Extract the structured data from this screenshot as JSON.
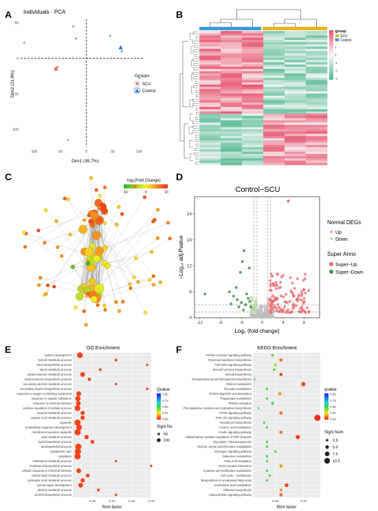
{
  "panels": {
    "a": "A",
    "b": "B",
    "c": "C",
    "d": "D",
    "e": "E",
    "f": "F"
  },
  "colors": {
    "scu": "#e57373",
    "control": "#1f78d1",
    "heat_high": "#e8516a",
    "heat_low": "#4fb88f",
    "heat_mid": "#f7f7f7",
    "group_scu": "#e6b422",
    "group_control": "#3a9ad9"
  },
  "chart_data": [
    {
      "id": "pca",
      "type": "scatter",
      "title": "Individuals - PCA",
      "xlabel": "Dim1 (35.7%)",
      "ylabel": "Dim2 (21.8%)",
      "xlim": [
        -125,
        110
      ],
      "ylim": [
        -125,
        55
      ],
      "xticks": [
        "-100",
        "-50",
        "0",
        "50",
        "100"
      ],
      "yticks": [
        "50",
        "0",
        "-50",
        "-100"
      ],
      "legend_title": "Groups",
      "series": [
        {
          "name": "SCU",
          "shape": "circle",
          "points": [
            [
              -25,
              45
            ],
            [
              -118,
              22
            ],
            [
              -55,
              -12
            ],
            [
              -35,
              -115
            ]
          ]
        },
        {
          "name": "Control",
          "shape": "triangle",
          "points": [
            [
              -20,
              28
            ],
            [
              45,
              32
            ],
            [
              67,
              10
            ],
            [
              100,
              -27
            ]
          ]
        }
      ],
      "centroids": [
        {
          "group": "SCU",
          "x": -58,
          "y": -15
        },
        {
          "group": "Control",
          "x": 65,
          "y": 15
        }
      ]
    },
    {
      "id": "heatmap",
      "type": "heatmap",
      "legend_title": "group",
      "legend_items": [
        "SCU",
        "Control"
      ],
      "scale_ticks": [
        "3",
        "2",
        "1",
        "0",
        "-1",
        "-2",
        "-3"
      ],
      "columns": 6
    },
    {
      "id": "network",
      "type": "network",
      "scale_title": "log₂(Fold Change)",
      "scale_ticks": [
        "-10",
        "0",
        "10"
      ]
    },
    {
      "id": "volcano",
      "type": "scatter",
      "title": "Control−SCU",
      "xlabel": "Log₂ (fold change)",
      "ylabel": "−Log₁₀ adj.Pvalue",
      "xlim": [
        -13,
        11
      ],
      "ylim": [
        0,
        28
      ],
      "xticks": [
        "-12",
        "-8",
        "-4",
        "0",
        "4",
        "8"
      ],
      "yticks": [
        "0",
        "6",
        "12",
        "18",
        "24"
      ],
      "legend1_title": "Normal DEGs",
      "legend1_items": [
        "Up",
        "Down"
      ],
      "legend2_title": "Super Anno",
      "legend2_items": [
        "Super−Up",
        "Super−Down"
      ]
    },
    {
      "id": "go",
      "type": "scatter",
      "title": "GO Enrichment",
      "xlabel": "Rich factor",
      "xlim": [
        0,
        0.2
      ],
      "xticks": [
        "0.05",
        "0.10",
        "0.15",
        "0.20"
      ],
      "legend_color_title": "Qvalue",
      "color_ticks": [
        "1.00",
        "0.75",
        "0.50",
        "0.25",
        "0.00"
      ],
      "legend_size_title": "Signi Nu",
      "size_ticks": [
        "50",
        "100"
      ],
      "terms": [
        {
          "label": "system development",
          "x": 0.018,
          "q": 0.05,
          "s": 9
        },
        {
          "label": "steroid metabolic process",
          "x": 0.11,
          "q": 0.05,
          "s": 3
        },
        {
          "label": "sterol biosynthetic process",
          "x": 0.19,
          "q": 0.05,
          "s": 2
        },
        {
          "label": "sterol metabolic process",
          "x": 0.07,
          "q": 0.05,
          "s": 3
        },
        {
          "label": "small molecule metabolic process",
          "x": 0.025,
          "q": 0.05,
          "s": 7
        },
        {
          "label": "small molecule biosynthetic process",
          "x": 0.042,
          "q": 0.05,
          "s": 4
        },
        {
          "label": "secondary alcohol metabolic process",
          "x": 0.11,
          "q": 0.05,
          "s": 2
        },
        {
          "label": "secondary alcohol biosynthetic process",
          "x": 0.19,
          "q": 0.05,
          "s": 2
        },
        {
          "label": "response to oxygen-containing compound",
          "x": 0.015,
          "q": 0.05,
          "s": 7
        },
        {
          "label": "response to organic substance",
          "x": 0.013,
          "q": 0.05,
          "s": 8
        },
        {
          "label": "response to external stimulus",
          "x": 0.014,
          "q": 0.05,
          "s": 7
        },
        {
          "label": "positive regulation of cellular process",
          "x": 0.012,
          "q": 0.05,
          "s": 9
        },
        {
          "label": "oxoacid metabolic process",
          "x": 0.025,
          "q": 0.05,
          "s": 6
        },
        {
          "label": "organic acid metabolic process",
          "x": 0.025,
          "q": 0.05,
          "s": 6
        },
        {
          "label": "organelle",
          "x": 0.012,
          "q": 0.05,
          "s": 10
        },
        {
          "label": "multicellular organism development",
          "x": 0.016,
          "q": 0.05,
          "s": 9
        },
        {
          "label": "membrane-bounded organelle",
          "x": 0.012,
          "q": 0.05,
          "s": 10
        },
        {
          "label": "lipid metabolic process",
          "x": 0.035,
          "q": 0.05,
          "s": 6
        },
        {
          "label": "lipid biosynthetic process",
          "x": 0.05,
          "q": 0.05,
          "s": 5
        },
        {
          "label": "developmental process",
          "x": 0.014,
          "q": 0.05,
          "s": 10
        },
        {
          "label": "cytoplasmic part",
          "x": 0.013,
          "q": 0.05,
          "s": 10
        },
        {
          "label": "cytoplasm",
          "x": 0.012,
          "q": 0.05,
          "s": 10
        },
        {
          "label": "cholesterol metabolic process",
          "x": 0.11,
          "q": 0.05,
          "s": 2
        },
        {
          "label": "cholesterol biosynthetic process",
          "x": 0.2,
          "q": 0.05,
          "s": 2
        },
        {
          "label": "cellular response to chemical stimulus",
          "x": 0.015,
          "q": 0.05,
          "s": 7
        },
        {
          "label": "cellular lipid metabolic process",
          "x": 0.038,
          "q": 0.05,
          "s": 5
        },
        {
          "label": "carboxylic acid metabolic process",
          "x": 0.025,
          "q": 0.05,
          "s": 6
        },
        {
          "label": "animal organ development",
          "x": 0.02,
          "q": 0.05,
          "s": 7
        },
        {
          "label": "alcohol metabolic process",
          "x": 0.065,
          "q": 0.05,
          "s": 3
        },
        {
          "label": "alcohol biosynthetic process",
          "x": 0.11,
          "q": 0.05,
          "s": 2
        }
      ]
    },
    {
      "id": "kegg",
      "type": "scatter",
      "title": "KEGG Enrichment",
      "xlabel": "Rich factor",
      "xlim": [
        0.01,
        0.13
      ],
      "xticks": [
        "0.05",
        "0.10"
      ],
      "legend_color_title": "qvalue",
      "color_ticks": [
        "1.00",
        "0.75",
        "0.50",
        "0.25",
        "0.00"
      ],
      "legend_size_title": "Signi Num",
      "size_ticks": [
        "2.5",
        "5.0",
        "7.5",
        "10.0"
      ],
      "terms": [
        {
          "label": "Toll-like receptor signaling pathway",
          "x": 0.045,
          "q": 0.45,
          "s": 3
        },
        {
          "label": "Terpenoid backbone biosynthesis",
          "x": 0.06,
          "q": 0.1,
          "s": 4
        },
        {
          "label": "TGF-beta signaling pathway",
          "x": 0.05,
          "q": 0.4,
          "s": 3
        },
        {
          "label": "Steroid hormone biosynthesis",
          "x": 0.048,
          "q": 0.45,
          "s": 3
        },
        {
          "label": "Steroid biosynthesis",
          "x": 0.06,
          "q": 0.05,
          "s": 4
        },
        {
          "label": "Sesquiterpenoid and triterpenoid biosynthesis",
          "x": 0.013,
          "q": 0.6,
          "s": 1
        },
        {
          "label": "Retinol metabolism",
          "x": 0.1,
          "q": 0.05,
          "s": 6
        },
        {
          "label": "Pyruvate metabolism",
          "x": 0.035,
          "q": 0.5,
          "s": 2
        },
        {
          "label": "Protein digestion and absorption",
          "x": 0.058,
          "q": 0.15,
          "s": 4
        },
        {
          "label": "Propanoate metabolism",
          "x": 0.035,
          "q": 0.5,
          "s": 2
        },
        {
          "label": "Platelet activation",
          "x": 0.045,
          "q": 0.5,
          "s": 3
        },
        {
          "label": "Phenylalanine, tyrosine and tryptophan biosynthesis",
          "x": 0.02,
          "q": 0.6,
          "s": 1
        },
        {
          "label": "PPAR signaling pathway",
          "x": 0.06,
          "q": 0.1,
          "s": 4
        },
        {
          "label": "PI3K-Akt signaling pathway",
          "x": 0.125,
          "q": 0.02,
          "s": 10
        },
        {
          "label": "Novobiocin biosynthesis",
          "x": 0.03,
          "q": 0.55,
          "s": 2
        },
        {
          "label": "Linoleic acid metabolism",
          "x": 0.035,
          "q": 0.5,
          "s": 2
        },
        {
          "label": "Insulin signaling pathway",
          "x": 0.06,
          "q": 0.1,
          "s": 4
        },
        {
          "label": "Inflammatory mediator regulation of TRP channels",
          "x": 0.09,
          "q": 0.05,
          "s": 6
        },
        {
          "label": "Glycolysis / Gluconeogenesis",
          "x": 0.035,
          "q": 0.5,
          "s": 2
        },
        {
          "label": "Glycine, serine and threonine metabolism",
          "x": 0.035,
          "q": 0.5,
          "s": 2
        },
        {
          "label": "Glucagon signaling pathway",
          "x": 0.05,
          "q": 0.45,
          "s": 3
        },
        {
          "label": "Galactose metabolism",
          "x": 0.035,
          "q": 0.5,
          "s": 2
        },
        {
          "label": "Fatty acid elongation",
          "x": 0.035,
          "q": 0.5,
          "s": 2
        },
        {
          "label": "ECM-receptor interaction",
          "x": 0.06,
          "q": 0.15,
          "s": 4
        },
        {
          "label": "Cysteine and methionine metabolism",
          "x": 0.035,
          "q": 0.5,
          "s": 2
        },
        {
          "label": "Cell cycle - Caulobacter",
          "x": 0.04,
          "q": 0.5,
          "s": 2
        },
        {
          "label": "Biosynthesis of unsaturated fatty acids",
          "x": 0.035,
          "q": 0.5,
          "s": 2
        },
        {
          "label": "Arachidonic acid metabolism",
          "x": 0.07,
          "q": 0.05,
          "s": 5
        },
        {
          "label": "Aflatoxin biosynthesis",
          "x": 0.06,
          "q": 0.15,
          "s": 3
        },
        {
          "label": "Adipocytokine signaling pathway",
          "x": 0.06,
          "q": 0.1,
          "s": 4
        }
      ]
    }
  ]
}
